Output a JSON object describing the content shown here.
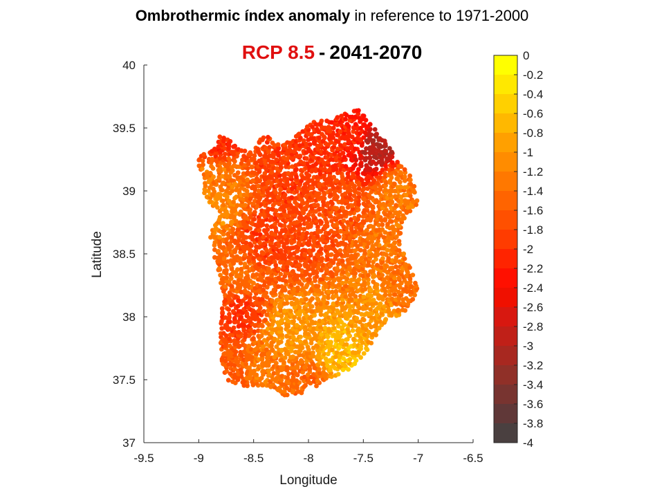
{
  "header": {
    "title_bold": "Ombrothermic índex anomaly",
    "title_rest": " in reference to 1971-2000",
    "scenario": "RCP 8.5",
    "separator": "-",
    "period": "2041-2070"
  },
  "colors": {
    "scenario_text": "#e01010",
    "colormap": [
      "#ffff00",
      "#ffe800",
      "#ffd000",
      "#ffb800",
      "#ffa000",
      "#ff8c00",
      "#ff7800",
      "#ff6400",
      "#ff5000",
      "#ff3c00",
      "#ff2400",
      "#ff1000",
      "#f01000",
      "#d81810",
      "#c02018",
      "#a82820",
      "#903028",
      "#783430",
      "#603838",
      "#4a4040"
    ]
  },
  "chart_data": {
    "type": "scatter",
    "xlabel": "Longitude",
    "ylabel": "Latitude",
    "xlim": [
      -9.5,
      -6.5
    ],
    "ylim": [
      37,
      40
    ],
    "xticks": [
      "-9.5",
      "-9",
      "-8.5",
      "-8",
      "-7.5",
      "-7",
      "-6.5"
    ],
    "yticks": [
      "37",
      "37.5",
      "38",
      "38.5",
      "39",
      "39.5",
      "40"
    ],
    "colorbar": {
      "range": [
        -4,
        0
      ],
      "ticks": [
        "0",
        "-0.2",
        "-0.4",
        "-0.6",
        "-0.8",
        "-1",
        "-1.2",
        "-1.4",
        "-1.6",
        "-1.8",
        "-2",
        "-2.2",
        "-2.4",
        "-2.6",
        "-2.8",
        "-3",
        "-3.2",
        "-3.4",
        "-3.6",
        "-3.8",
        "-4"
      ]
    },
    "region_outline": [
      [
        -8.9,
        39.3
      ],
      [
        -8.8,
        39.45
      ],
      [
        -8.7,
        39.4
      ],
      [
        -8.55,
        39.3
      ],
      [
        -8.4,
        39.45
      ],
      [
        -8.25,
        39.35
      ],
      [
        -8.1,
        39.45
      ],
      [
        -7.95,
        39.55
      ],
      [
        -7.7,
        39.6
      ],
      [
        -7.55,
        39.65
      ],
      [
        -7.45,
        39.55
      ],
      [
        -7.3,
        39.4
      ],
      [
        -7.2,
        39.25
      ],
      [
        -7.05,
        39.1
      ],
      [
        -7.0,
        38.9
      ],
      [
        -7.15,
        38.75
      ],
      [
        -7.15,
        38.55
      ],
      [
        -7.05,
        38.35
      ],
      [
        -7.0,
        38.2
      ],
      [
        -7.1,
        38.05
      ],
      [
        -7.3,
        37.95
      ],
      [
        -7.45,
        37.75
      ],
      [
        -7.6,
        37.6
      ],
      [
        -7.8,
        37.5
      ],
      [
        -8.05,
        37.4
      ],
      [
        -8.2,
        37.35
      ],
      [
        -8.4,
        37.45
      ],
      [
        -8.6,
        37.45
      ],
      [
        -8.75,
        37.5
      ],
      [
        -8.8,
        37.65
      ],
      [
        -8.8,
        37.95
      ],
      [
        -8.78,
        38.2
      ],
      [
        -8.85,
        38.45
      ],
      [
        -8.9,
        38.65
      ],
      [
        -8.8,
        38.8
      ],
      [
        -8.95,
        38.95
      ],
      [
        -9.0,
        39.15
      ],
      [
        -9.0,
        39.3
      ]
    ],
    "anomaly_samples": [
      {
        "lon": -7.4,
        "lat": 39.35,
        "value": -3.0
      },
      {
        "lon": -7.6,
        "lat": 39.45,
        "value": -2.1
      },
      {
        "lon": -7.9,
        "lat": 39.35,
        "value": -2.0
      },
      {
        "lon": -8.2,
        "lat": 39.2,
        "value": -1.9
      },
      {
        "lon": -8.85,
        "lat": 39.4,
        "value": -2.1
      },
      {
        "lon": -8.85,
        "lat": 39.1,
        "value": -1.3
      },
      {
        "lon": -8.85,
        "lat": 38.9,
        "value": -1.1
      },
      {
        "lon": -7.2,
        "lat": 39.0,
        "value": -1.3
      },
      {
        "lon": -8.0,
        "lat": 38.7,
        "value": -1.8
      },
      {
        "lon": -8.4,
        "lat": 38.6,
        "value": -1.9
      },
      {
        "lon": -7.7,
        "lat": 38.9,
        "value": -1.7
      },
      {
        "lon": -7.3,
        "lat": 38.5,
        "value": -1.3
      },
      {
        "lon": -8.6,
        "lat": 38.3,
        "value": -1.4
      },
      {
        "lon": -8.6,
        "lat": 38.05,
        "value": -2.0
      },
      {
        "lon": -8.2,
        "lat": 37.9,
        "value": -1.0
      },
      {
        "lon": -7.7,
        "lat": 37.7,
        "value": -0.7
      },
      {
        "lon": -7.3,
        "lat": 38.0,
        "value": -1.0
      },
      {
        "lon": -8.4,
        "lat": 37.6,
        "value": -1.3
      },
      {
        "lon": -8.7,
        "lat": 37.5,
        "value": -1.6
      },
      {
        "lon": -8.0,
        "lat": 37.45,
        "value": -1.5
      },
      {
        "lon": -7.1,
        "lat": 38.15,
        "value": -1.4
      }
    ]
  }
}
